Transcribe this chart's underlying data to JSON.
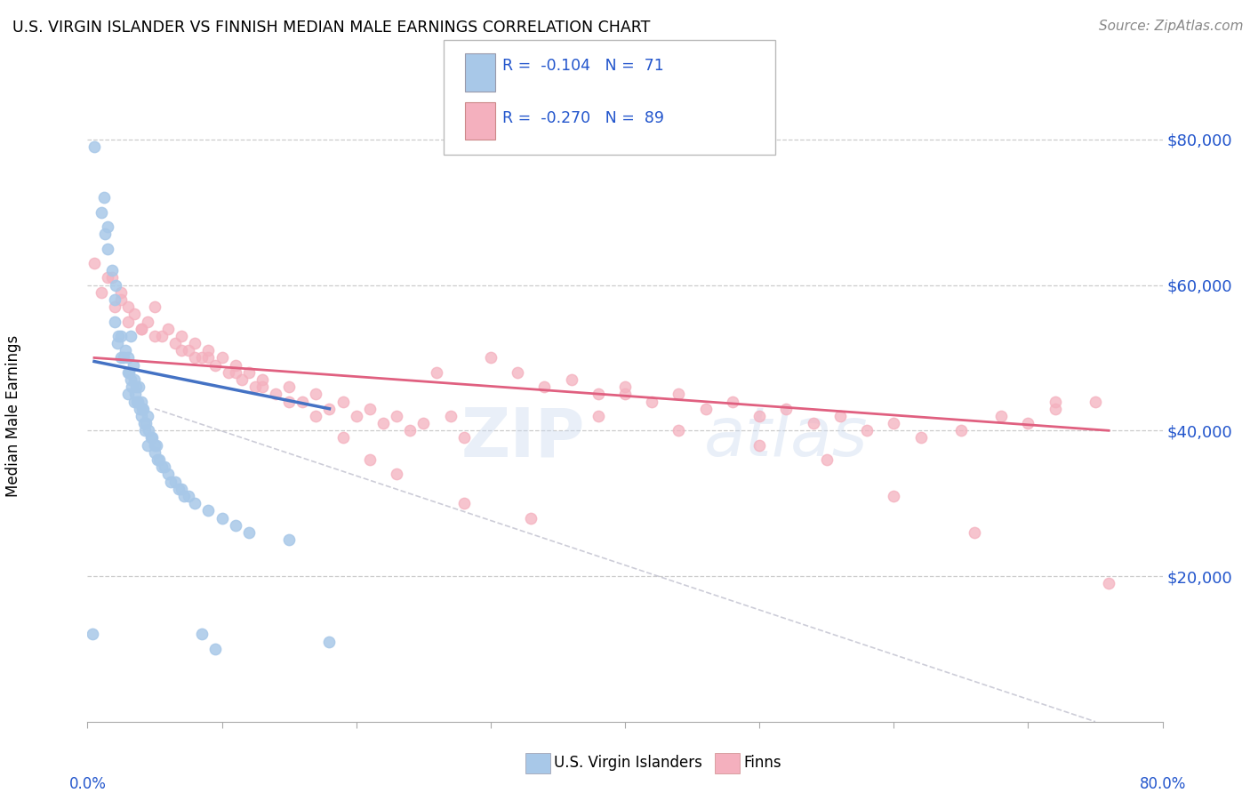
{
  "title": "U.S. VIRGIN ISLANDER VS FINNISH MEDIAN MALE EARNINGS CORRELATION CHART",
  "source": "Source: ZipAtlas.com",
  "ylabel": "Median Male Earnings",
  "y_tick_labels": [
    "$20,000",
    "$40,000",
    "$60,000",
    "$80,000"
  ],
  "y_tick_values": [
    20000,
    40000,
    60000,
    80000
  ],
  "color_vi": "#a8c8e8",
  "color_finn": "#f4b0be",
  "color_vi_line": "#4472c4",
  "color_finn_line": "#e06080",
  "color_dash": "#c0c0c0",
  "watermark_zip": "ZIP",
  "watermark_atlas": "atlas",
  "vi_x": [
    0.5,
    1.0,
    1.2,
    1.5,
    1.5,
    1.8,
    2.0,
    2.0,
    2.2,
    2.5,
    2.5,
    2.8,
    3.0,
    3.0,
    3.0,
    3.2,
    3.2,
    3.4,
    3.5,
    3.5,
    3.6,
    3.7,
    3.8,
    3.9,
    4.0,
    4.0,
    4.1,
    4.2,
    4.3,
    4.5,
    4.5,
    4.8,
    5.0,
    5.0,
    5.2,
    5.5,
    6.0,
    6.5,
    7.0,
    7.5,
    8.0,
    9.0,
    10.0,
    11.0,
    12.0,
    15.0,
    18.0,
    2.3,
    2.7,
    3.1,
    3.3,
    3.55,
    3.75,
    4.15,
    4.35,
    4.55,
    4.75,
    5.1,
    5.3,
    5.7,
    6.2,
    6.8,
    7.2,
    8.5,
    9.5,
    0.4,
    1.3,
    2.1
  ],
  "vi_y": [
    79000,
    70000,
    72000,
    68000,
    65000,
    62000,
    58000,
    55000,
    52000,
    50000,
    53000,
    51000,
    48000,
    50000,
    45000,
    47000,
    53000,
    49000,
    47000,
    44000,
    46000,
    44000,
    46000,
    43000,
    44000,
    42000,
    43000,
    41000,
    40000,
    42000,
    38000,
    39000,
    38000,
    37000,
    36000,
    35000,
    34000,
    33000,
    32000,
    31000,
    30000,
    29000,
    28000,
    27000,
    26000,
    25000,
    11000,
    53000,
    50000,
    48000,
    46000,
    45000,
    44000,
    43000,
    41000,
    40000,
    39000,
    38000,
    36000,
    35000,
    33000,
    32000,
    31000,
    12000,
    10000,
    12000,
    67000,
    60000
  ],
  "finn_x": [
    0.5,
    1.0,
    1.5,
    2.0,
    2.5,
    3.0,
    3.5,
    4.0,
    4.5,
    5.0,
    5.5,
    6.0,
    6.5,
    7.0,
    7.5,
    8.0,
    8.5,
    9.0,
    9.5,
    10.0,
    10.5,
    11.0,
    11.5,
    12.0,
    12.5,
    13.0,
    14.0,
    15.0,
    16.0,
    17.0,
    18.0,
    19.0,
    20.0,
    21.0,
    22.0,
    23.0,
    24.0,
    25.0,
    26.0,
    27.0,
    28.0,
    30.0,
    32.0,
    34.0,
    36.0,
    38.0,
    40.0,
    42.0,
    44.0,
    46.0,
    48.0,
    50.0,
    52.0,
    54.0,
    56.0,
    58.0,
    60.0,
    62.0,
    65.0,
    68.0,
    70.0,
    72.0,
    75.0,
    3.0,
    5.0,
    7.0,
    9.0,
    11.0,
    13.0,
    15.0,
    17.0,
    19.0,
    21.0,
    23.0,
    28.0,
    33.0,
    38.0,
    44.0,
    50.0,
    55.0,
    60.0,
    66.0,
    72.0,
    76.0,
    1.8,
    2.5,
    4.0,
    8.0,
    40.0
  ],
  "finn_y": [
    63000,
    59000,
    61000,
    57000,
    58000,
    55000,
    56000,
    54000,
    55000,
    57000,
    53000,
    54000,
    52000,
    53000,
    51000,
    52000,
    50000,
    51000,
    49000,
    50000,
    48000,
    49000,
    47000,
    48000,
    46000,
    47000,
    45000,
    46000,
    44000,
    45000,
    43000,
    44000,
    42000,
    43000,
    41000,
    42000,
    40000,
    41000,
    48000,
    42000,
    39000,
    50000,
    48000,
    46000,
    47000,
    45000,
    46000,
    44000,
    45000,
    43000,
    44000,
    42000,
    43000,
    41000,
    42000,
    40000,
    41000,
    39000,
    40000,
    42000,
    41000,
    43000,
    44000,
    57000,
    53000,
    51000,
    50000,
    48000,
    46000,
    44000,
    42000,
    39000,
    36000,
    34000,
    30000,
    28000,
    42000,
    40000,
    38000,
    36000,
    31000,
    26000,
    44000,
    19000,
    61000,
    59000,
    54000,
    50000,
    45000
  ],
  "vi_line_x": [
    0.5,
    18.0
  ],
  "vi_line_y": [
    49500,
    43000
  ],
  "finn_line_x": [
    0.5,
    76.0
  ],
  "finn_line_y": [
    50000,
    40000
  ],
  "dash_line_x": [
    5.0,
    75.0
  ],
  "dash_line_y": [
    43000,
    0
  ],
  "xlim": [
    0,
    80
  ],
  "ylim": [
    0,
    85000
  ]
}
